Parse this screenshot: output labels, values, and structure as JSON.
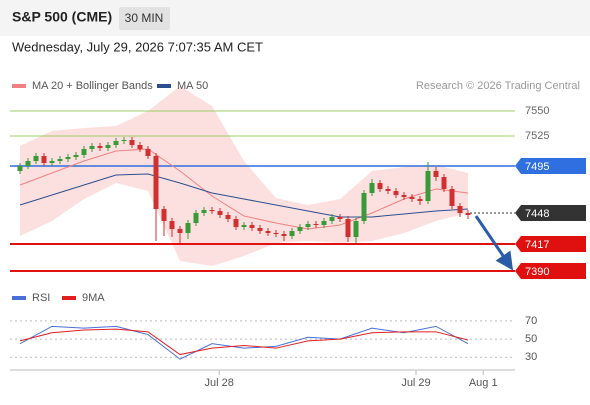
{
  "header": {
    "title": "S&P 500 (CME)",
    "timeframe": "30 MIN",
    "date": "Wednesday, July 29, 2026 7:07:35 AM CET",
    "source": "Research © 2026 Trading Central"
  },
  "chart_data": [
    {
      "type": "candlestick",
      "up_color": "#3a9a3a",
      "down_color": "#d03030",
      "xlim": [
        -1.25,
        61.875
      ],
      "ylim": [
        7376,
        7566
      ],
      "open": [
        7490,
        7495,
        7500,
        7505,
        7498,
        7500,
        7502,
        7504,
        7506,
        7512,
        7515,
        7513,
        7516,
        7520,
        7521,
        7516,
        7512,
        7505,
        7452,
        7440,
        7432,
        7428,
        7438,
        7448,
        7451,
        7450,
        7446,
        7442,
        7434,
        7436,
        7433,
        7430,
        7428,
        7427,
        7425,
        7430,
        7434,
        7437,
        7436,
        7440,
        7444,
        7442,
        7424,
        7440,
        7468,
        7478,
        7472,
        7470,
        7466,
        7464,
        7462,
        7460,
        7490,
        7484,
        7472,
        7455,
        7448
      ],
      "high": [
        7498,
        7503,
        7508,
        7508,
        7503,
        7505,
        7507,
        7509,
        7515,
        7518,
        7518,
        7519,
        7523,
        7524,
        7524,
        7519,
        7515,
        7508,
        7455,
        7443,
        7435,
        7441,
        7451,
        7454,
        7454,
        7453,
        7449,
        7445,
        7439,
        7439,
        7436,
        7433,
        7431,
        7430,
        7433,
        7437,
        7440,
        7440,
        7443,
        7447,
        7447,
        7445,
        7443,
        7471,
        7482,
        7481,
        7475,
        7473,
        7469,
        7467,
        7465,
        7499,
        7494,
        7487,
        7475,
        7458,
        7451
      ],
      "low": [
        7487,
        7492,
        7497,
        7495,
        7495,
        7497,
        7499,
        7501,
        7503,
        7509,
        7510,
        7510,
        7513,
        7517,
        7513,
        7509,
        7502,
        7420,
        7425,
        7424,
        7418,
        7422,
        7435,
        7445,
        7447,
        7443,
        7439,
        7431,
        7431,
        7430,
        7427,
        7425,
        7424,
        7420,
        7422,
        7427,
        7431,
        7433,
        7433,
        7437,
        7439,
        7419,
        7418,
        7437,
        7465,
        7469,
        7467,
        7463,
        7461,
        7459,
        7456,
        7457,
        7480,
        7469,
        7452,
        7444,
        7442
      ],
      "close": [
        7495,
        7500,
        7505,
        7498,
        7500,
        7502,
        7504,
        7506,
        7512,
        7515,
        7513,
        7516,
        7520,
        7521,
        7516,
        7512,
        7505,
        7452,
        7440,
        7432,
        7428,
        7438,
        7448,
        7451,
        7450,
        7446,
        7442,
        7434,
        7436,
        7433,
        7430,
        7428,
        7427,
        7425,
        7430,
        7434,
        7437,
        7436,
        7440,
        7444,
        7442,
        7424,
        7440,
        7468,
        7478,
        7472,
        7470,
        7466,
        7464,
        7462,
        7460,
        7490,
        7484,
        7472,
        7455,
        7448,
        7446
      ],
      "overlays": {
        "x": [
          0,
          4,
          8,
          12,
          16,
          20,
          24,
          28,
          32,
          36,
          40,
          44,
          48,
          52,
          56
        ],
        "series": [
          {
            "name": "MA 20 + Bollinger Bands",
            "color": "#f08080",
            "values": [
              7476,
              7488,
              7500,
              7510,
              7512,
              7490,
              7465,
              7445,
              7438,
              7432,
              7436,
              7448,
              7462,
              7472,
              7468
            ],
            "band_upper": [
              7515,
              7530,
              7533,
              7535,
              7550,
              7575,
              7555,
              7500,
              7463,
              7456,
              7462,
              7490,
              7494,
              7496,
              7488
            ],
            "band_lower": [
              7425,
              7440,
              7462,
              7478,
              7470,
              7400,
              7395,
              7405,
              7418,
              7420,
              7418,
              7420,
              7428,
              7440,
              7448
            ],
            "band_color": "#fbd3d3"
          },
          {
            "name": "MA 50",
            "color": "#2b4f8e",
            "values": [
              7456,
              7466,
              7476,
              7486,
              7487,
              7478,
              7468,
              7462,
              7456,
              7450,
              7444,
              7444,
              7447,
              7450,
              7452
            ]
          }
        ]
      },
      "levels": [
        {
          "value": 7550,
          "color": "#9ccc65",
          "style": "solid",
          "width": 1,
          "tag": false
        },
        {
          "value": 7525,
          "color": "#9ccc65",
          "style": "solid",
          "width": 1,
          "tag": false
        },
        {
          "value": 7495,
          "color": "#2f6fe0",
          "style": "solid",
          "width": 1.5,
          "tag": true
        },
        {
          "value": 7448,
          "color": "#333333",
          "style": "dotted",
          "width": 1,
          "tag": true
        },
        {
          "value": 7417,
          "color": "#e01010",
          "style": "solid",
          "width": 2,
          "tag": true
        },
        {
          "value": 7390,
          "color": "#e01010",
          "style": "solid",
          "width": 2,
          "tag": true
        }
      ]
    },
    {
      "type": "line",
      "x": [
        0,
        4,
        8,
        12,
        16,
        20,
        24,
        28,
        32,
        36,
        40,
        44,
        48,
        52,
        56
      ],
      "xlim": [
        -1.25,
        61.875
      ],
      "ylim": [
        16,
        82
      ],
      "yticks": [
        30,
        50,
        70
      ],
      "xticks": [
        {
          "value": 24.9,
          "label": "Jul 28"
        },
        {
          "value": 49.5,
          "label": "Jul 29"
        },
        {
          "value": 57.9,
          "label": "Aug 1"
        }
      ],
      "series": [
        {
          "name": "RSI",
          "color": "#4a6fd8",
          "values": [
            45,
            64,
            62,
            64,
            55,
            28,
            45,
            40,
            42,
            52,
            50,
            62,
            57,
            64,
            45
          ]
        },
        {
          "name": "9MA",
          "color": "#e02020",
          "values": [
            48,
            57,
            60,
            61,
            58,
            33,
            40,
            43,
            40,
            48,
            50,
            57,
            58,
            58,
            49
          ]
        }
      ]
    }
  ]
}
